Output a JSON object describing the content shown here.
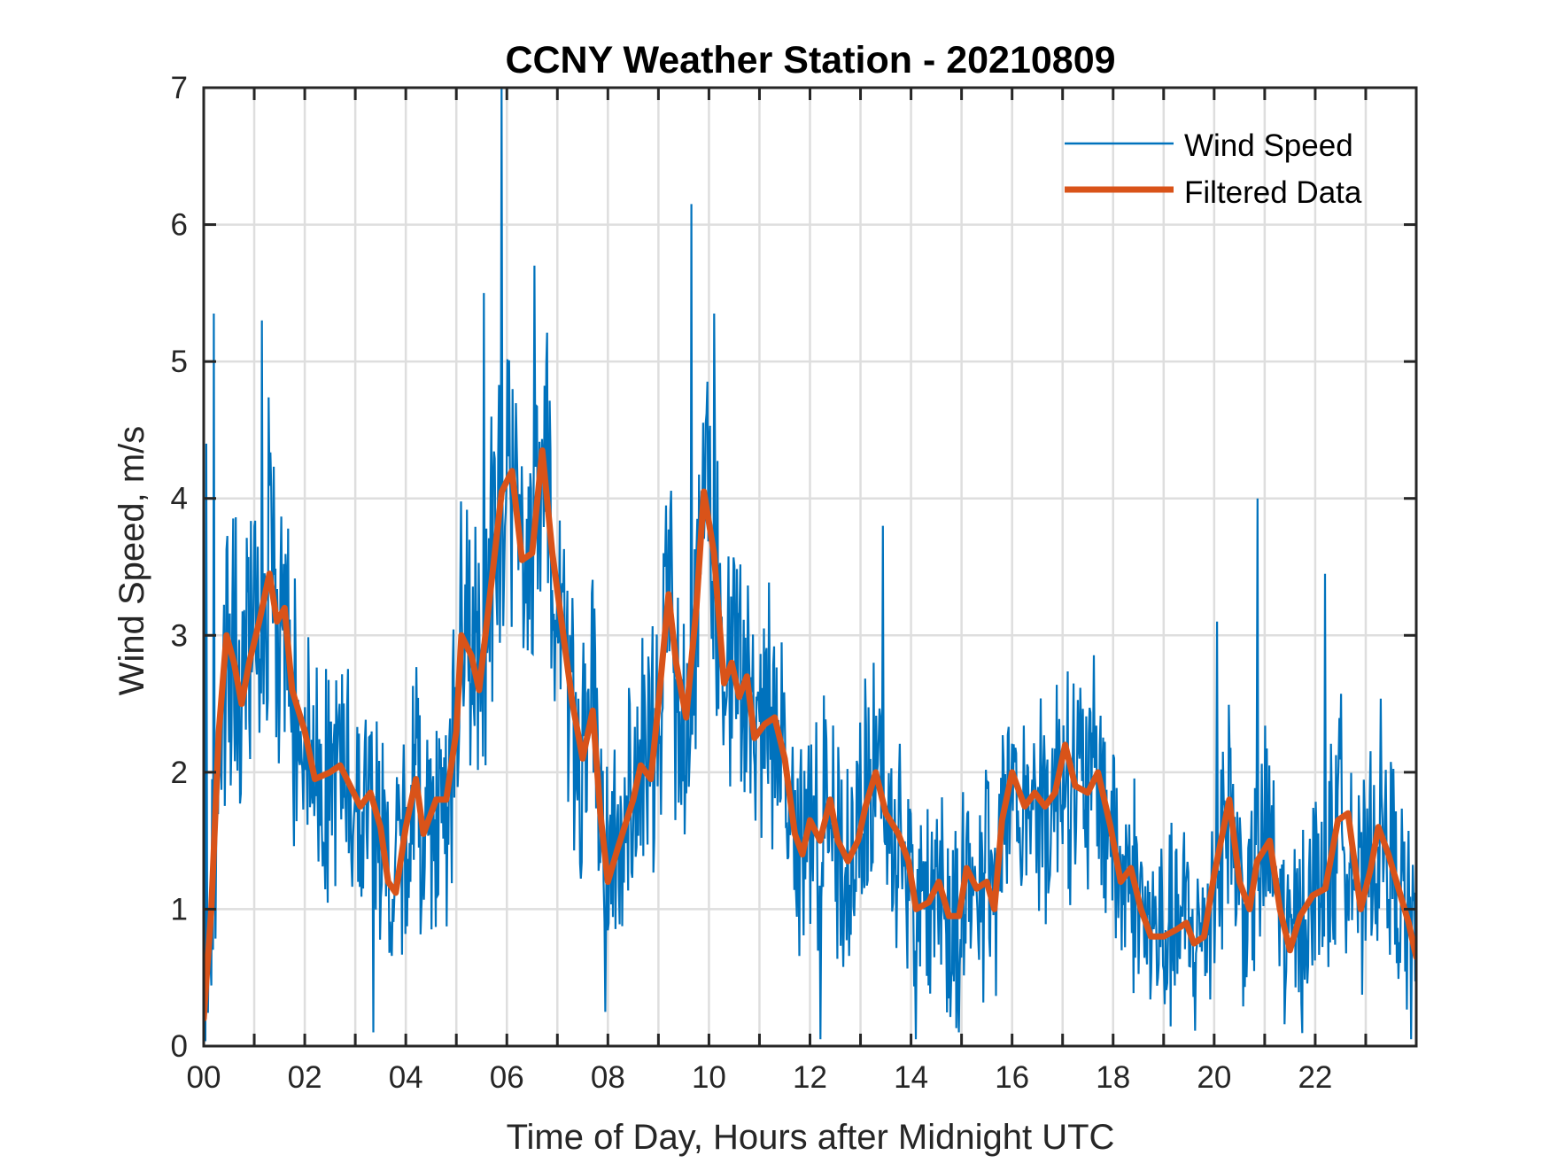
{
  "chart_data": {
    "type": "line",
    "title": "CCNY Weather Station - 20210809",
    "xlabel": "Time of Day, Hours after Midnight UTC",
    "ylabel": "Wind Speed, m/s",
    "xlim": [
      0,
      24
    ],
    "ylim": [
      0,
      7
    ],
    "grid": true,
    "x_ticks": [
      0,
      1,
      2,
      3,
      4,
      5,
      6,
      7,
      8,
      9,
      10,
      11,
      12,
      13,
      14,
      15,
      16,
      17,
      18,
      19,
      20,
      21,
      22,
      23
    ],
    "x_tick_labels": [
      {
        "x": 0,
        "label": "00"
      },
      {
        "x": 2,
        "label": "02"
      },
      {
        "x": 4,
        "label": "04"
      },
      {
        "x": 6,
        "label": "06"
      },
      {
        "x": 8,
        "label": "08"
      },
      {
        "x": 10,
        "label": "10"
      },
      {
        "x": 12,
        "label": "12"
      },
      {
        "x": 14,
        "label": "14"
      },
      {
        "x": 16,
        "label": "16"
      },
      {
        "x": 18,
        "label": "18"
      },
      {
        "x": 20,
        "label": "20"
      },
      {
        "x": 22,
        "label": "22"
      }
    ],
    "y_ticks": [
      0,
      1,
      2,
      3,
      4,
      5,
      6,
      7
    ],
    "y_tick_labels": [
      "0",
      "1",
      "2",
      "3",
      "4",
      "5",
      "6",
      "7"
    ],
    "legend_position": "top-right",
    "series": [
      {
        "name": "Wind Speed",
        "color": "#0072BD",
        "style": "thin-noisy",
        "noise_amplitude": 1.1,
        "sample_interval_hours": 0.0167,
        "notable_peaks": [
          {
            "x": 0.05,
            "y": 4.4
          },
          {
            "x": 0.2,
            "y": 5.35
          },
          {
            "x": 1.15,
            "y": 5.3
          },
          {
            "x": 5.55,
            "y": 5.5
          },
          {
            "x": 5.9,
            "y": 7.0
          },
          {
            "x": 6.55,
            "y": 5.7
          },
          {
            "x": 9.65,
            "y": 6.15
          },
          {
            "x": 10.1,
            "y": 5.35
          },
          {
            "x": 13.45,
            "y": 3.8
          },
          {
            "x": 20.05,
            "y": 3.1
          },
          {
            "x": 20.85,
            "y": 4.0
          },
          {
            "x": 22.2,
            "y": 3.45
          }
        ],
        "notable_lows": [
          {
            "x": 3.35,
            "y": 0.1
          },
          {
            "x": 7.95,
            "y": 0.25
          },
          {
            "x": 12.2,
            "y": 0.05
          },
          {
            "x": 14.1,
            "y": 0.05
          },
          {
            "x": 14.95,
            "y": 0.1
          },
          {
            "x": 23.9,
            "y": 0.05
          }
        ]
      },
      {
        "name": "Filtered Data",
        "color": "#D95319",
        "style": "thick",
        "x": [
          0.0,
          0.15,
          0.3,
          0.45,
          0.6,
          0.75,
          0.9,
          1.1,
          1.3,
          1.45,
          1.6,
          1.75,
          2.0,
          2.2,
          2.5,
          2.7,
          2.9,
          3.1,
          3.3,
          3.5,
          3.65,
          3.8,
          4.0,
          4.2,
          4.35,
          4.6,
          4.8,
          5.0,
          5.1,
          5.3,
          5.45,
          5.7,
          5.9,
          6.1,
          6.3,
          6.5,
          6.7,
          6.9,
          7.3,
          7.5,
          7.7,
          7.85,
          8.0,
          8.2,
          8.5,
          8.65,
          8.85,
          9.0,
          9.2,
          9.35,
          9.55,
          9.75,
          9.9,
          10.1,
          10.3,
          10.45,
          10.6,
          10.75,
          10.9,
          11.1,
          11.3,
          11.5,
          11.7,
          11.85,
          12.0,
          12.2,
          12.4,
          12.55,
          12.75,
          12.95,
          13.1,
          13.3,
          13.5,
          13.75,
          13.95,
          14.1,
          14.35,
          14.55,
          14.75,
          14.95,
          15.1,
          15.3,
          15.5,
          15.65,
          15.8,
          16.0,
          16.25,
          16.45,
          16.65,
          16.85,
          17.05,
          17.25,
          17.5,
          17.7,
          17.95,
          18.15,
          18.35,
          18.55,
          18.75,
          19.0,
          19.25,
          19.45,
          19.6,
          19.8,
          20.0,
          20.3,
          20.5,
          20.7,
          20.85,
          21.1,
          21.3,
          21.5,
          21.7,
          21.95,
          22.2,
          22.45,
          22.65,
          22.9,
          23.1,
          23.25,
          23.45,
          23.65,
          23.85,
          24.0
        ],
        "y": [
          0.2,
          1.0,
          2.3,
          3.0,
          2.8,
          2.5,
          2.8,
          3.1,
          3.45,
          3.1,
          3.2,
          2.6,
          2.3,
          1.95,
          2.0,
          2.05,
          1.9,
          1.75,
          1.85,
          1.6,
          1.2,
          1.12,
          1.6,
          1.95,
          1.55,
          1.8,
          1.8,
          2.3,
          3.0,
          2.85,
          2.6,
          3.4,
          4.05,
          4.2,
          3.55,
          3.6,
          4.35,
          3.6,
          2.5,
          2.1,
          2.45,
          1.7,
          1.2,
          1.45,
          1.8,
          2.05,
          1.95,
          2.5,
          3.3,
          2.8,
          2.4,
          3.2,
          4.05,
          3.6,
          2.65,
          2.8,
          2.55,
          2.7,
          2.25,
          2.35,
          2.4,
          2.1,
          1.55,
          1.4,
          1.65,
          1.5,
          1.8,
          1.5,
          1.35,
          1.5,
          1.75,
          2.0,
          1.7,
          1.55,
          1.35,
          1.0,
          1.05,
          1.2,
          0.95,
          0.95,
          1.3,
          1.15,
          1.2,
          1.0,
          1.65,
          2.0,
          1.75,
          1.85,
          1.75,
          1.85,
          2.2,
          1.9,
          1.85,
          2.0,
          1.6,
          1.2,
          1.3,
          1.0,
          0.8,
          0.8,
          0.85,
          0.9,
          0.75,
          0.8,
          1.25,
          1.8,
          1.2,
          1.0,
          1.35,
          1.5,
          1.0,
          0.7,
          0.95,
          1.1,
          1.15,
          1.65,
          1.7,
          1.0,
          1.3,
          1.6,
          1.4,
          1.15,
          0.9,
          0.65
        ]
      }
    ]
  }
}
